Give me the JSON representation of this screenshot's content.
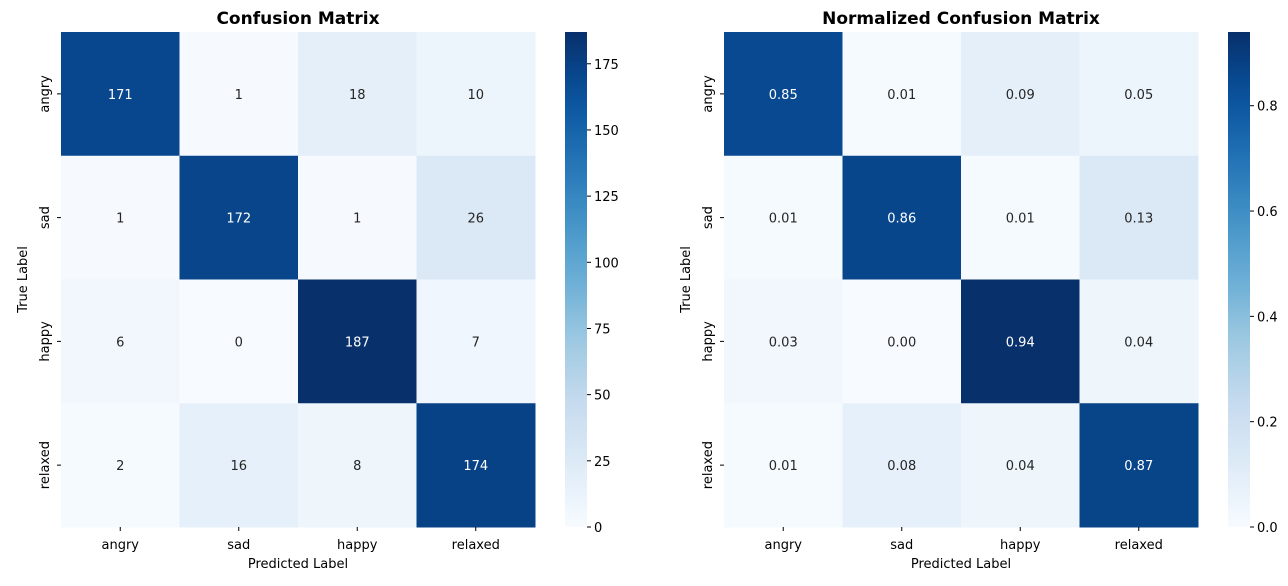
{
  "chart_data": [
    {
      "type": "heatmap",
      "title": "Confusion Matrix",
      "xlabel": "Predicted Label",
      "ylabel": "True Label",
      "x_categories": [
        "angry",
        "sad",
        "happy",
        "relaxed"
      ],
      "y_categories": [
        "angry",
        "sad",
        "happy",
        "relaxed"
      ],
      "values": [
        [
          171,
          1,
          18,
          10
        ],
        [
          1,
          172,
          1,
          26
        ],
        [
          6,
          0,
          187,
          7
        ],
        [
          2,
          16,
          8,
          174
        ]
      ],
      "value_labels": [
        [
          "171",
          "1",
          "18",
          "10"
        ],
        [
          "1",
          "172",
          "1",
          "26"
        ],
        [
          "6",
          "0",
          "187",
          "7"
        ],
        [
          "2",
          "16",
          "8",
          "174"
        ]
      ],
      "colorbar": {
        "colormap": "Blues",
        "range": [
          0,
          187
        ],
        "ticks": [
          0,
          25,
          50,
          75,
          100,
          125,
          150,
          175
        ],
        "tick_labels": [
          "0",
          "25",
          "50",
          "75",
          "100",
          "125",
          "150",
          "175"
        ]
      },
      "grid": false
    },
    {
      "type": "heatmap",
      "title": "Normalized Confusion Matrix",
      "xlabel": "Predicted Label",
      "ylabel": "True Label",
      "x_categories": [
        "angry",
        "sad",
        "happy",
        "relaxed"
      ],
      "y_categories": [
        "angry",
        "sad",
        "happy",
        "relaxed"
      ],
      "values": [
        [
          0.85,
          0.01,
          0.09,
          0.05
        ],
        [
          0.01,
          0.86,
          0.01,
          0.13
        ],
        [
          0.03,
          0.0,
          0.94,
          0.04
        ],
        [
          0.01,
          0.08,
          0.04,
          0.87
        ]
      ],
      "value_labels": [
        [
          "0.85",
          "0.01",
          "0.09",
          "0.05"
        ],
        [
          "0.01",
          "0.86",
          "0.01",
          "0.13"
        ],
        [
          "0.03",
          "0.00",
          "0.94",
          "0.04"
        ],
        [
          "0.01",
          "0.08",
          "0.04",
          "0.87"
        ]
      ],
      "colorbar": {
        "colormap": "Blues",
        "range": [
          0,
          0.94
        ],
        "ticks": [
          0.0,
          0.2,
          0.4,
          0.6,
          0.8
        ],
        "tick_labels": [
          "0.0",
          "0.2",
          "0.4",
          "0.6",
          "0.8"
        ]
      },
      "grid": false
    }
  ]
}
